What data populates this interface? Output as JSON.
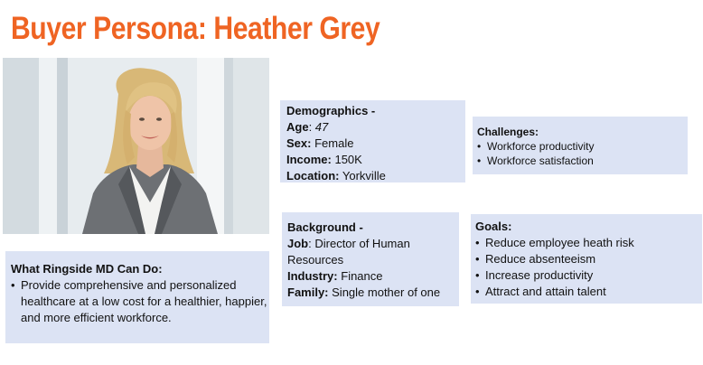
{
  "title": "Buyer Persona: Heather Grey",
  "demographics": {
    "heading": "Demographics -",
    "age_label": "Age",
    "age_value": "47",
    "sex_label": "Sex:",
    "sex_value": "Female",
    "income_label": "Income:",
    "income_value": "150K",
    "location_label": "Location:",
    "location_value": "Yorkville"
  },
  "background": {
    "heading": "Background -",
    "job_label": "Job",
    "job_value": "Director of Human Resources",
    "industry_label": "Industry:",
    "industry_value": "Finance",
    "family_label": "Family:",
    "family_value": "Single mother of one"
  },
  "challenges": {
    "heading": "Challenges:",
    "items": [
      "Workforce productivity",
      "Workforce satisfaction"
    ]
  },
  "goals": {
    "heading": "Goals:",
    "items": [
      "Reduce employee heath risk",
      "Reduce absenteeism",
      "Increase productivity",
      "Attract and attain talent"
    ]
  },
  "ringside": {
    "heading": "What Ringside MD Can Do:",
    "items": [
      "Provide comprehensive and personalized healthcare at a low cost for a healthier, happier, and more efficient workforce."
    ]
  },
  "colors": {
    "title": "#ef6423",
    "box_fill": "#dce3f4"
  }
}
